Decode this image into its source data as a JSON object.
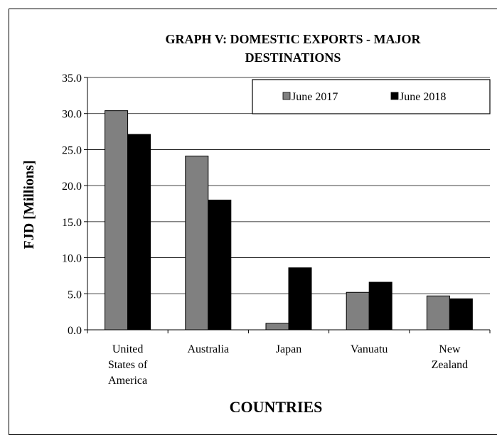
{
  "chart_data": {
    "type": "bar",
    "title_lines": [
      "GRAPH V: DOMESTIC EXPORTS -  MAJOR",
      "DESTINATIONS"
    ],
    "xlabel": "COUNTRIES",
    "ylabel": "FJD [Millions]",
    "categories": [
      [
        "United",
        "States of",
        "America"
      ],
      [
        "Australia"
      ],
      [
        "Japan"
      ],
      [
        "Vanuatu"
      ],
      [
        "New",
        "Zealand"
      ]
    ],
    "series": [
      {
        "name": "June 2017",
        "color": "#808080",
        "values": [
          30.4,
          24.1,
          0.9,
          5.2,
          4.7
        ]
      },
      {
        "name": "June 2018",
        "color": "#000000",
        "values": [
          27.1,
          18.0,
          8.6,
          6.6,
          4.3
        ]
      }
    ],
    "yticks": [
      "0.0",
      "5.0",
      "10.0",
      "15.0",
      "20.0",
      "25.0",
      "30.0",
      "35.0"
    ],
    "ylim": [
      0,
      35
    ],
    "grid": true,
    "legend_position": "top-right"
  }
}
